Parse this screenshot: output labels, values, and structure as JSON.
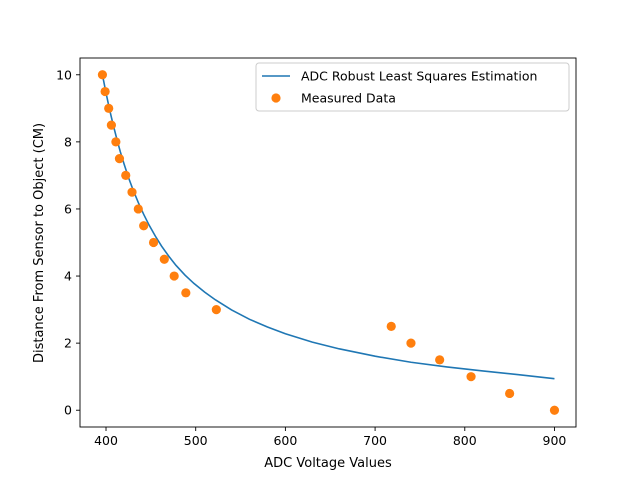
{
  "chart_data": {
    "type": "scatter",
    "title": "",
    "xlabel": "ADC Voltage Values",
    "ylabel": "Distance From Sensor to Object (CM)",
    "xlim": [
      371,
      924
    ],
    "ylim": [
      -0.5,
      10.5
    ],
    "xticks": [
      400,
      500,
      600,
      700,
      800,
      900
    ],
    "yticks": [
      0,
      2,
      4,
      6,
      8,
      10
    ],
    "grid": false,
    "legend_position": "top-right",
    "colors": {
      "line": "#1f77b4",
      "points": "#ff7f0e"
    },
    "series": [
      {
        "name": "ADC Robust Least Squares Estimation",
        "kind": "line",
        "x": [
          396,
          400,
          404,
          408,
          412,
          416,
          420,
          425,
          430,
          436,
          442,
          448,
          455,
          462,
          470,
          478,
          488,
          498,
          510,
          522,
          540,
          560,
          580,
          600,
          630,
          660,
          700,
          740,
          780,
          820,
          860,
          900
        ],
        "y": [
          10.0,
          9.46,
          8.96,
          8.51,
          8.09,
          7.7,
          7.35,
          6.94,
          6.58,
          6.19,
          5.84,
          5.52,
          5.19,
          4.89,
          4.59,
          4.32,
          4.03,
          3.78,
          3.52,
          3.29,
          2.99,
          2.71,
          2.48,
          2.28,
          2.03,
          1.83,
          1.61,
          1.43,
          1.29,
          1.17,
          1.06,
          0.94
        ]
      },
      {
        "name": "Measured Data",
        "kind": "scatter",
        "x": [
          396,
          399,
          403,
          406,
          411,
          415,
          422,
          429,
          436,
          442,
          453,
          465,
          476,
          489,
          523,
          718,
          740,
          772,
          807,
          850,
          900
        ],
        "y": [
          10.0,
          9.5,
          9.0,
          8.5,
          8.0,
          7.5,
          7.0,
          6.5,
          6.0,
          5.5,
          5.0,
          4.5,
          4.0,
          3.5,
          3.0,
          2.5,
          2.0,
          1.5,
          1.0,
          0.5,
          0.0
        ]
      }
    ]
  }
}
